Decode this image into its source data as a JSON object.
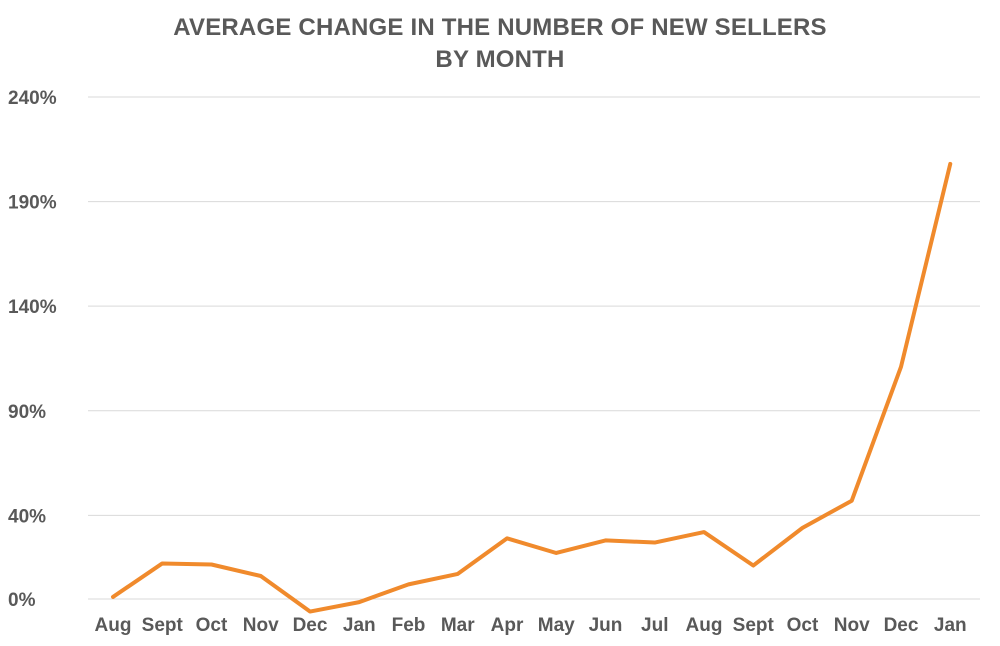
{
  "chart_data": {
    "type": "line",
    "title_lines": [
      "AVERAGE CHANGE IN THE NUMBER OF NEW SELLERS",
      "BY MONTH"
    ],
    "categories": [
      "Aug",
      "Sept",
      "Oct",
      "Nov",
      "Dec",
      "Jan",
      "Feb",
      "Mar",
      "Apr",
      "May",
      "Jun",
      "Jul",
      "Aug",
      "Sept",
      "Oct",
      "Nov",
      "Dec",
      "Jan"
    ],
    "series": [
      {
        "values": [
          1,
          17,
          16.5,
          11,
          -6,
          -1.5,
          7,
          12,
          29,
          22,
          28,
          27,
          32,
          16,
          34,
          47,
          111,
          208
        ],
        "color": "#F08A2C"
      }
    ],
    "y_ticks": [
      0,
      40,
      90,
      140,
      190,
      240
    ],
    "y_tick_labels": [
      "0%",
      "40%",
      "90%",
      "140%",
      "190%",
      "240%"
    ],
    "ylim": [
      0,
      240
    ],
    "grid": true,
    "legend": "none"
  }
}
